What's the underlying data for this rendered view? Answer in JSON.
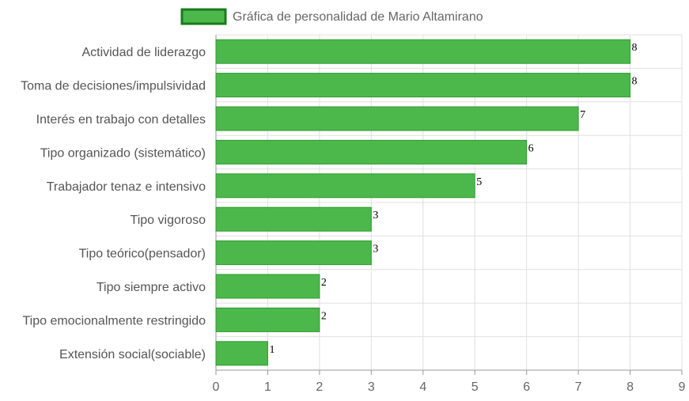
{
  "chart_data": {
    "type": "bar",
    "orientation": "horizontal",
    "categories": [
      "Actividad de liderazgo",
      "Toma de decisiones/impulsividad",
      "Interés en trabajo con detalles",
      "Tipo organizado (sistemático)",
      "Trabajador tenaz e intensivo",
      "Tipo vigoroso",
      "Tipo teórico(pensador)",
      "Tipo siempre activo",
      "Tipo emocionalmente restringido",
      "Extensión social(sociable)"
    ],
    "series": [
      {
        "name": "Gráfica de personalidad de Mario Altamirano",
        "values": [
          8,
          8,
          7,
          6,
          5,
          3,
          3,
          2,
          2,
          1
        ]
      }
    ],
    "xlim": [
      0,
      9
    ],
    "xticks": [
      "0",
      "1",
      "2",
      "3",
      "4",
      "5",
      "6",
      "7",
      "8",
      "9"
    ],
    "grid": true,
    "legend_position": "top",
    "data_labels": true,
    "colors": {
      "bar_fill": "#4cb84c",
      "bar_stroke": "#2e9a2e",
      "legend_stroke": "#1a7a1a",
      "grid": "#e0e0e0",
      "axis": "#999999"
    }
  }
}
